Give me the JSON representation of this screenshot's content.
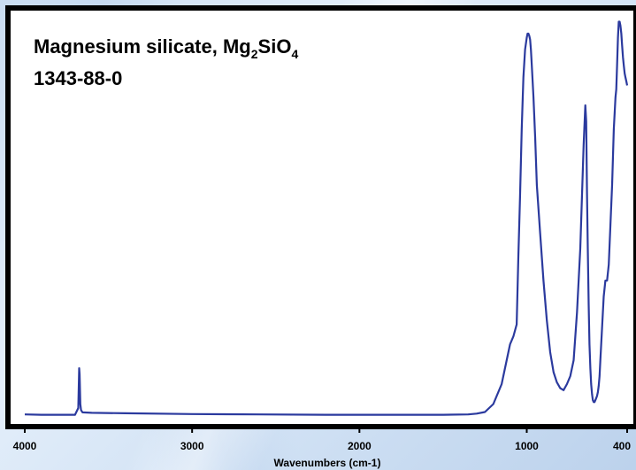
{
  "chart_data": {
    "type": "line",
    "title_line1_prefix": "Magnesium silicate, Mg",
    "title_sub1": "2",
    "title_mid": "SiO",
    "title_sub2": "4",
    "title_line2": "1343-88-0",
    "xlabel": "Wavenumbers (cm-1)",
    "xlim": [
      4000,
      400
    ],
    "ylim": [
      0,
      100
    ],
    "x_reversed": true,
    "x_ticks": [
      4000,
      3000,
      2000,
      1000,
      400
    ],
    "x_tick_labels": [
      "4000",
      "3000",
      "2000",
      "1000",
      "400"
    ],
    "grid": false,
    "line_color": "#2b3a9e",
    "series": [
      {
        "x": [
          4000,
          3900,
          3700,
          3680,
          3675,
          3672,
          3668,
          3664,
          3655,
          3600,
          3400,
          3000,
          2600,
          2200,
          1900,
          1700,
          1500,
          1350,
          1300,
          1250,
          1200,
          1150,
          1120,
          1100,
          1080,
          1060,
          1050,
          1040,
          1030,
          1020,
          1010,
          1000,
          995,
          990,
          985,
          980,
          975,
          970,
          960,
          950,
          940,
          920,
          900,
          880,
          860,
          840,
          820,
          800,
          780,
          760,
          740,
          720,
          700,
          680,
          660,
          650,
          645,
          640,
          635,
          630,
          625,
          620,
          615,
          610,
          605,
          600,
          595,
          590,
          585,
          580,
          575,
          570,
          565,
          560,
          550,
          540,
          530,
          520,
          510,
          500,
          490,
          480,
          470,
          465,
          460,
          455,
          450,
          445,
          440,
          435,
          430,
          425,
          420,
          415,
          410,
          405,
          400
        ],
        "y": [
          0.4,
          0.3,
          0.3,
          2.0,
          12.0,
          10.5,
          3.0,
          1.5,
          0.9,
          0.8,
          0.7,
          0.5,
          0.4,
          0.3,
          0.3,
          0.3,
          0.3,
          0.4,
          0.6,
          1.0,
          3.0,
          8.0,
          14.0,
          18.0,
          20.0,
          23.0,
          40.0,
          55.0,
          72.0,
          85.0,
          92.0,
          95.0,
          96.0,
          96.0,
          95.5,
          94.5,
          92.0,
          88.0,
          80.0,
          70.0,
          58.0,
          46.0,
          34.0,
          24.0,
          16.0,
          11.0,
          8.5,
          7.0,
          6.5,
          8.0,
          10.0,
          14.0,
          26.0,
          42.0,
          68.0,
          78.0,
          74.0,
          56.0,
          42.0,
          28.0,
          18.0,
          12.0,
          8.0,
          5.5,
          4.0,
          3.5,
          3.5,
          4.0,
          4.5,
          5.0,
          6.0,
          7.5,
          10.0,
          14.0,
          22.0,
          30.0,
          34.0,
          34.0,
          38.0,
          48.0,
          58.0,
          72.0,
          80.0,
          82.0,
          88.0,
          95.0,
          99.0,
          99.0,
          98.0,
          96.0,
          93.0,
          90.0,
          88.0,
          86.0,
          85.0,
          84.0,
          83.0
        ]
      }
    ]
  }
}
